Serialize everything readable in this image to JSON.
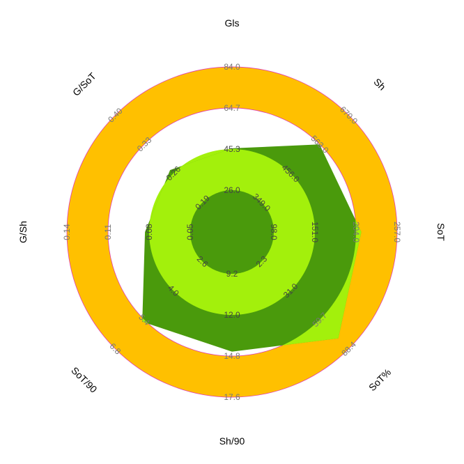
{
  "chart_data": {
    "type": "radar",
    "categories": [
      "Gls",
      "Sh",
      "SoT",
      "SoT%",
      "Sh/90",
      "SoT/90",
      "G/Sh",
      "G/SoT"
    ],
    "tick_labels": [
      [
        "84.0",
        "64.7",
        "45.3",
        "26.0"
      ],
      [
        "670.0",
        "563.0",
        "456.0",
        "349.0"
      ],
      [
        "257.0",
        "204.0",
        "151.0",
        "98.0"
      ],
      [
        "88.4",
        "59.7",
        "31.0",
        "2.3"
      ],
      [
        "17.6",
        "14.8",
        "12.0",
        "9.2"
      ],
      [
        "6.8",
        "5.4",
        "4.0",
        "2.6"
      ],
      [
        "0.14",
        "0.11",
        "0.08",
        "0.05"
      ],
      [
        "0.40",
        "0.33",
        "0.26",
        "0.19"
      ]
    ],
    "series": [
      {
        "values": [
          45.7,
          562.6,
          210.8,
          78.1,
          14.5,
          5.5,
          0.083,
          0.268
        ]
      }
    ],
    "colors": {
      "band_outer": "#ffc000",
      "band_outer_edge": "#e03cb0",
      "band_inner": "#a3f00c",
      "polygon": "#4a9a0c",
      "center": "#4a9a0c",
      "tick_label": "#777777",
      "tick_label_inner": "#444444"
    }
  }
}
